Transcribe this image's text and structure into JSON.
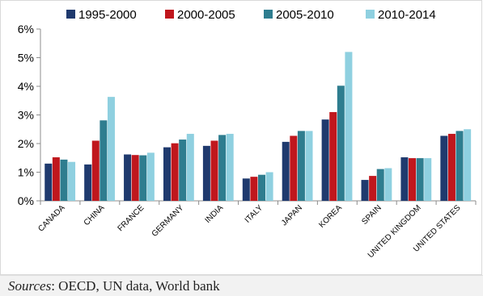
{
  "chart_data": {
    "type": "bar",
    "categories": [
      "CANADA",
      "CHINA",
      "FRANCE",
      "GERMANY",
      "INDIA",
      "ITALY",
      "JAPAN",
      "KOREA",
      "SPAIN",
      "UNITED KINGDOM",
      "UNITED STATES"
    ],
    "series": [
      {
        "name": "1995-2000",
        "color": "#1f3a6e",
        "values": [
          1.3,
          1.27,
          1.62,
          1.87,
          1.92,
          0.78,
          2.06,
          2.84,
          0.73,
          1.52,
          2.27
        ]
      },
      {
        "name": "2000-2005",
        "color": "#c0171d",
        "values": [
          1.52,
          2.1,
          1.6,
          2.01,
          2.1,
          0.84,
          2.27,
          3.1,
          0.87,
          1.49,
          2.34
        ]
      },
      {
        "name": "2005-2010",
        "color": "#2e7d8f",
        "values": [
          1.44,
          2.81,
          1.59,
          2.14,
          2.3,
          0.91,
          2.44,
          4.02,
          1.11,
          1.49,
          2.44
        ]
      },
      {
        "name": "2010-2014",
        "color": "#8fd0e0",
        "values": [
          1.36,
          3.63,
          1.68,
          2.34,
          2.34,
          1.0,
          2.44,
          5.2,
          1.14,
          1.49,
          2.5
        ]
      }
    ],
    "y_ticks": [
      "0%",
      "1%",
      "2%",
      "3%",
      "4%",
      "5%",
      "6%"
    ],
    "ylim": [
      0,
      6
    ],
    "grid": false,
    "legend_position": "top"
  },
  "source": {
    "label": "Sources",
    "text": ": OECD, UN data,  World bank"
  }
}
